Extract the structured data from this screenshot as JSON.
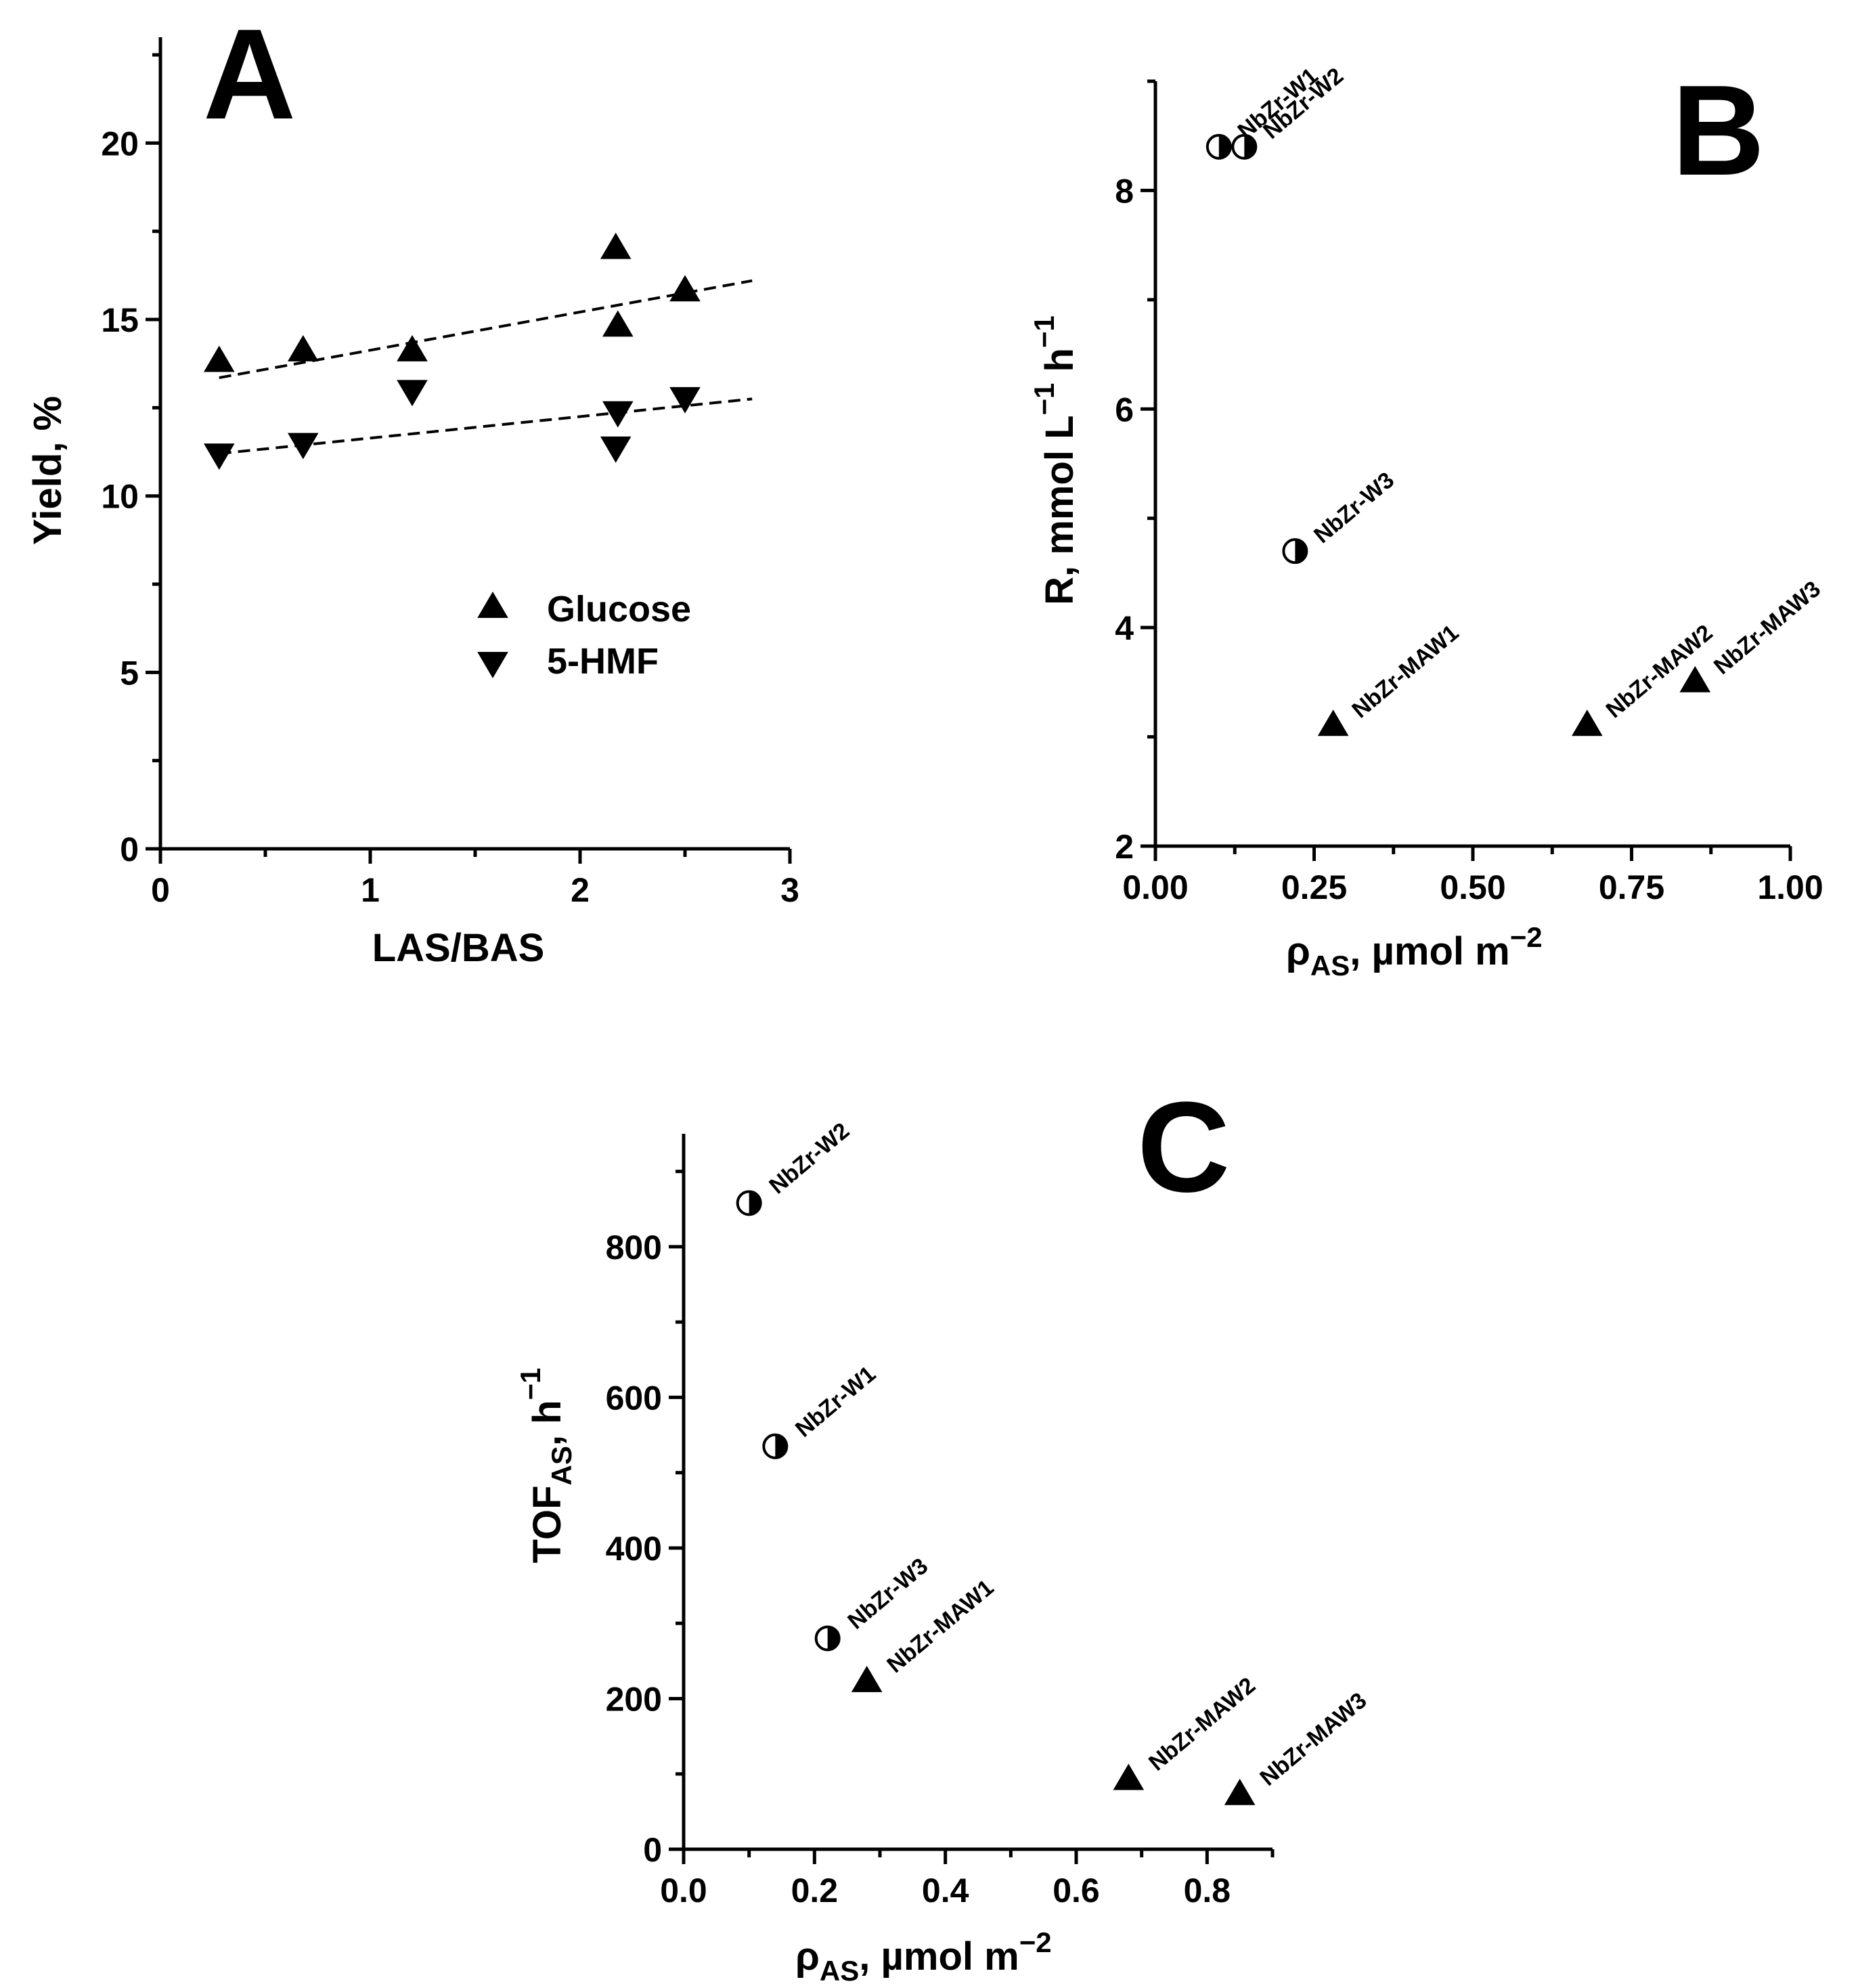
{
  "chart_data": [
    {
      "type": "scatter",
      "panel": "A",
      "xlabel": "LAS/BAS",
      "ylabel": "Yield, %",
      "xlim": [
        0,
        3
      ],
      "ylim": [
        0,
        23
      ],
      "xticks": [
        "0",
        "1",
        "2",
        "3"
      ],
      "yticks": [
        "0",
        "5",
        "10",
        "15",
        "20"
      ],
      "legend": [
        "Glucose",
        "5-HMF"
      ],
      "legend_position": "middle-right",
      "series": [
        {
          "name": "Glucose",
          "marker": "triangle-up",
          "x": [
            0.28,
            0.68,
            1.2,
            2.17,
            2.18,
            2.5
          ],
          "y": [
            13.8,
            14.1,
            14.1,
            17.0,
            14.8,
            15.8
          ],
          "trend": {
            "x": [
              0.28,
              2.82
            ],
            "y": [
              13.35,
              16.1
            ]
          }
        },
        {
          "name": "5-HMF",
          "marker": "triangle-down",
          "x": [
            0.28,
            0.68,
            1.2,
            2.17,
            2.18,
            2.5
          ],
          "y": [
            11.2,
            11.5,
            13.0,
            11.4,
            12.4,
            12.8
          ],
          "trend": {
            "x": [
              0.28,
              2.82
            ],
            "y": [
              11.2,
              12.75
            ]
          }
        }
      ]
    },
    {
      "type": "scatter",
      "panel": "B",
      "xlabel": "ρAS, µmol m−2",
      "xlabel_parts": {
        "symbol": "ρ",
        "sub": "AS",
        "rest": ", µmol m",
        "sup": "−2"
      },
      "ylabel": "R, mmol L−1 h−1",
      "ylabel_parts": {
        "a": "R, mmol L",
        "sup1": "−1",
        "b": " h",
        "sup2": "−1"
      },
      "xlim": [
        0,
        1
      ],
      "ylim": [
        2,
        9
      ],
      "xticks": [
        "0.00",
        "0.25",
        "0.50",
        "0.75",
        "1.00"
      ],
      "yticks": [
        "2",
        "4",
        "6",
        "8"
      ],
      "points": [
        {
          "label": "NbZr-W1",
          "marker": "half-circle",
          "x": 0.1,
          "y": 8.4
        },
        {
          "label": "NbZr-W2",
          "marker": "half-circle",
          "x": 0.14,
          "y": 8.4
        },
        {
          "label": "NbZr-W3",
          "marker": "half-circle",
          "x": 0.22,
          "y": 4.7
        },
        {
          "label": "NbZr-MAW1",
          "marker": "triangle-up",
          "x": 0.28,
          "y": 3.1
        },
        {
          "label": "NbZr-MAW2",
          "marker": "triangle-up",
          "x": 0.68,
          "y": 3.1
        },
        {
          "label": "NbZr-MAW3",
          "marker": "triangle-up",
          "x": 0.85,
          "y": 3.5
        }
      ]
    },
    {
      "type": "scatter",
      "panel": "C",
      "xlabel": "ρAS, µmol m−2",
      "xlabel_parts": {
        "symbol": "ρ",
        "sub": "AS",
        "rest": ", µmol m",
        "sup": "−2"
      },
      "ylabel": "TOFAS, h−1",
      "ylabel_parts": {
        "a": "TOF",
        "sub": "AS",
        "b": ", h",
        "sup": "−1"
      },
      "xlim": [
        0,
        0.9
      ],
      "ylim": [
        0,
        950
      ],
      "xticks": [
        "0.0",
        "0.2",
        "0.4",
        "0.6",
        "0.8"
      ],
      "yticks": [
        "0",
        "200",
        "400",
        "600",
        "800"
      ],
      "points": [
        {
          "label": "NbZr-W2",
          "marker": "half-circle",
          "x": 0.1,
          "y": 858
        },
        {
          "label": "NbZr-W1",
          "marker": "half-circle",
          "x": 0.14,
          "y": 535
        },
        {
          "label": "NbZr-W3",
          "marker": "half-circle",
          "x": 0.22,
          "y": 280
        },
        {
          "label": "NbZr-MAW1",
          "marker": "triangle-up",
          "x": 0.28,
          "y": 222
        },
        {
          "label": "NbZr-MAW2",
          "marker": "triangle-up",
          "x": 0.68,
          "y": 92
        },
        {
          "label": "NbZr-MAW3",
          "marker": "triangle-up",
          "x": 0.85,
          "y": 72
        }
      ]
    }
  ]
}
